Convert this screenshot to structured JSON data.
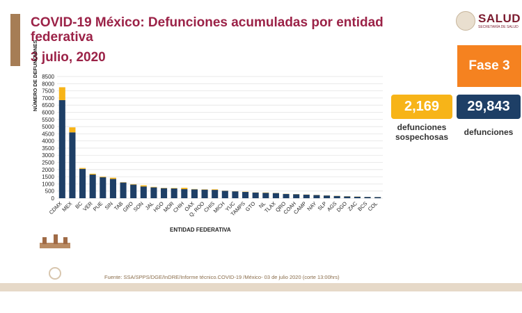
{
  "header": {
    "title": "COVID-19 México: Defunciones acumuladas por entidad federativa",
    "date": "3 julio, 2020"
  },
  "logo": {
    "text": "SALUD",
    "subtitle": "SECRETARÍA DE SALUD"
  },
  "phase": {
    "label": "Fase 3"
  },
  "stats": {
    "suspected": {
      "value": "2,169",
      "label": "defunciones sospechosas"
    },
    "confirmed": {
      "value": "29,843",
      "label": "defunciones"
    }
  },
  "source": "Fuente: SSA/SPPS/DGE/InDRE/Informe técnico.COVID-19 /México- 03 de julio 2020 (corte 13:00hrs)",
  "colors": {
    "confirmed": "#1e3f66",
    "suspected": "#f7b418",
    "title": "#9b2247",
    "phase": "#f58220"
  },
  "chart_data": {
    "type": "bar",
    "stacked": true,
    "xlabel": "ENTIDAD FEDERATIVA",
    "ylabel": "NÚMERO DE DEFUNCIONES",
    "ylim": [
      0,
      8500
    ],
    "yticks": [
      0,
      500,
      1000,
      1500,
      2000,
      2500,
      3000,
      3500,
      4000,
      4500,
      5000,
      5500,
      6000,
      6500,
      7000,
      7500,
      8000,
      8500
    ],
    "grid": true,
    "categories": [
      "CDMX",
      "MEX",
      "BC",
      "VER",
      "PUE",
      "SIN",
      "TAB",
      "GRO",
      "SON",
      "JAL",
      "HGO",
      "MOR",
      "CHIH",
      "OAX",
      "Q. ROO",
      "CHIS",
      "MICH",
      "YUC",
      "TAMPS",
      "GTO",
      "NL",
      "TLAX",
      "QRO",
      "COAH",
      "CAMP",
      "NAY",
      "SLP",
      "AGS",
      "DGO",
      "ZAC",
      "BCS",
      "COL"
    ],
    "series": [
      {
        "values": [
          6850,
          4600,
          2050,
          1650,
          1470,
          1350,
          1100,
          950,
          820,
          760,
          700,
          680,
          640,
          620,
          600,
          580,
          520,
          480,
          440,
          400,
          380,
          360,
          300,
          280,
          250,
          220,
          190,
          160,
          130,
          110,
          90,
          80
        ]
      },
      {
        "values": [
          900,
          350,
          60,
          60,
          40,
          80,
          20,
          30,
          80,
          30,
          20,
          30,
          90,
          20,
          20,
          40,
          10,
          10,
          20,
          10,
          20,
          10,
          10,
          10,
          10,
          10,
          10,
          10,
          10,
          10,
          5,
          5
        ]
      }
    ]
  }
}
